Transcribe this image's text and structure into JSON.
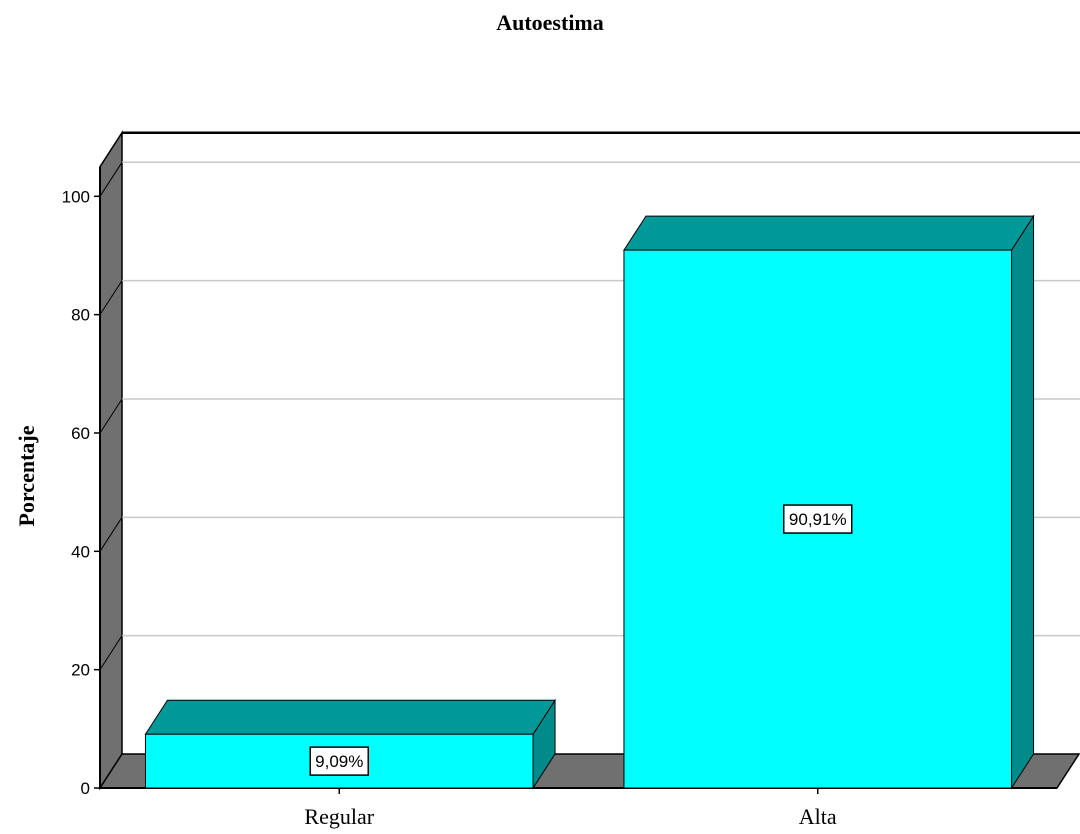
{
  "chart_data": {
    "type": "bar",
    "title": "Autoestima",
    "xlabel": "",
    "ylabel": "Porcentaje",
    "categories": [
      "Regular",
      "Alta"
    ],
    "values": [
      9.09,
      90.91
    ],
    "data_labels": [
      "9,09%",
      "90,91%"
    ],
    "yticks": [
      0,
      20,
      40,
      60,
      80,
      100
    ],
    "ylim": [
      0,
      105
    ],
    "grid": true,
    "style": "3d",
    "colors": {
      "bar_front": "#00FFFF",
      "bar_top": "#009999",
      "bar_side": "#008B8B",
      "wall": "#707070",
      "floor": "#707070",
      "gridline": "#c8c8c8"
    }
  }
}
